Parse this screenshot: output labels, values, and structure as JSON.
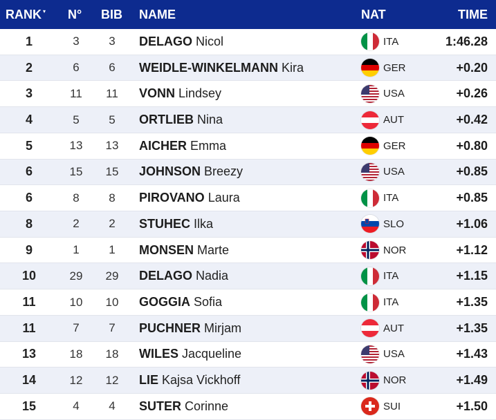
{
  "header": {
    "rank": "RANK",
    "no": "N°",
    "bib": "BIB",
    "name": "NAME",
    "nat": "NAT",
    "time": "TIME",
    "sort_indicator": "▾"
  },
  "colors": {
    "header_bg": "#0d2b8f",
    "row_alt": "#edf0f8"
  },
  "rows": [
    {
      "rank": "1",
      "no": "3",
      "bib": "3",
      "surname": "DELAGO",
      "given": "Nicol",
      "nat": "ITA",
      "flag": "italy-flag-icon",
      "time": "1:46.28"
    },
    {
      "rank": "2",
      "no": "6",
      "bib": "6",
      "surname": "WEIDLE-WINKELMANN",
      "given": "Kira",
      "nat": "GER",
      "flag": "germany-flag-icon",
      "time": "+0.20"
    },
    {
      "rank": "3",
      "no": "11",
      "bib": "11",
      "surname": "VONN",
      "given": "Lindsey",
      "nat": "USA",
      "flag": "usa-flag-icon",
      "time": "+0.26"
    },
    {
      "rank": "4",
      "no": "5",
      "bib": "5",
      "surname": "ORTLIEB",
      "given": "Nina",
      "nat": "AUT",
      "flag": "austria-flag-icon",
      "time": "+0.42"
    },
    {
      "rank": "5",
      "no": "13",
      "bib": "13",
      "surname": "AICHER",
      "given": "Emma",
      "nat": "GER",
      "flag": "germany-flag-icon",
      "time": "+0.80"
    },
    {
      "rank": "6",
      "no": "15",
      "bib": "15",
      "surname": "JOHNSON",
      "given": "Breezy",
      "nat": "USA",
      "flag": "usa-flag-icon",
      "time": "+0.85"
    },
    {
      "rank": "6",
      "no": "8",
      "bib": "8",
      "surname": "PIROVANO",
      "given": "Laura",
      "nat": "ITA",
      "flag": "italy-flag-icon",
      "time": "+0.85"
    },
    {
      "rank": "8",
      "no": "2",
      "bib": "2",
      "surname": "STUHEC",
      "given": "Ilka",
      "nat": "SLO",
      "flag": "slovenia-flag-icon",
      "time": "+1.06"
    },
    {
      "rank": "9",
      "no": "1",
      "bib": "1",
      "surname": "MONSEN",
      "given": "Marte",
      "nat": "NOR",
      "flag": "norway-flag-icon",
      "time": "+1.12"
    },
    {
      "rank": "10",
      "no": "29",
      "bib": "29",
      "surname": "DELAGO",
      "given": "Nadia",
      "nat": "ITA",
      "flag": "italy-flag-icon",
      "time": "+1.15"
    },
    {
      "rank": "11",
      "no": "10",
      "bib": "10",
      "surname": "GOGGIA",
      "given": "Sofia",
      "nat": "ITA",
      "flag": "italy-flag-icon",
      "time": "+1.35"
    },
    {
      "rank": "11",
      "no": "7",
      "bib": "7",
      "surname": "PUCHNER",
      "given": "Mirjam",
      "nat": "AUT",
      "flag": "austria-flag-icon",
      "time": "+1.35"
    },
    {
      "rank": "13",
      "no": "18",
      "bib": "18",
      "surname": "WILES",
      "given": "Jacqueline",
      "nat": "USA",
      "flag": "usa-flag-icon",
      "time": "+1.43"
    },
    {
      "rank": "14",
      "no": "12",
      "bib": "12",
      "surname": "LIE",
      "given": "Kajsa Vickhoff",
      "nat": "NOR",
      "flag": "norway-flag-icon",
      "time": "+1.49"
    },
    {
      "rank": "15",
      "no": "4",
      "bib": "4",
      "surname": "SUTER",
      "given": "Corinne",
      "nat": "SUI",
      "flag": "switzerland-flag-icon",
      "time": "+1.50"
    }
  ]
}
